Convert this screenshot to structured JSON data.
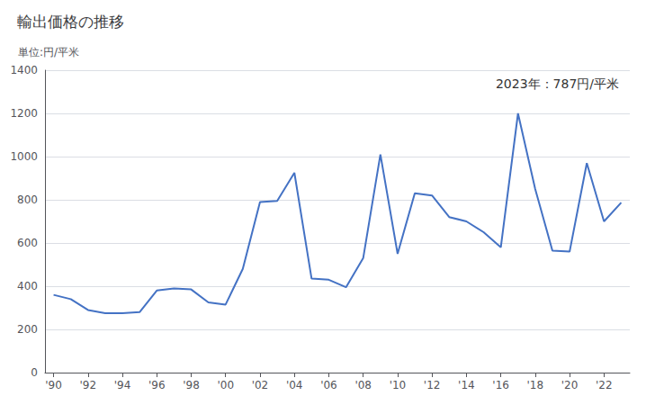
{
  "chart_data": {
    "type": "line",
    "title": "輸出価格の推移",
    "ylabel": "単位:円/平米",
    "annotation": "2023年：787円/平米",
    "x": [
      1990,
      1991,
      1992,
      1993,
      1994,
      1995,
      1996,
      1997,
      1998,
      1999,
      2000,
      2001,
      2002,
      2003,
      2004,
      2005,
      2006,
      2007,
      2008,
      2009,
      2010,
      2011,
      2012,
      2013,
      2014,
      2015,
      2016,
      2017,
      2018,
      2019,
      2020,
      2021,
      2022,
      2023
    ],
    "values": [
      360,
      340,
      290,
      275,
      275,
      280,
      380,
      390,
      385,
      325,
      315,
      480,
      790,
      795,
      925,
      435,
      430,
      395,
      530,
      1010,
      550,
      830,
      820,
      720,
      700,
      650,
      580,
      1200,
      850,
      565,
      560,
      970,
      700,
      787
    ],
    "color": "#4472c4",
    "xlim": [
      1989.5,
      2023.5
    ],
    "xticks": [
      {
        "value": 1990,
        "label": "'90"
      },
      {
        "value": 1992,
        "label": "'92"
      },
      {
        "value": 1994,
        "label": "'94"
      },
      {
        "value": 1996,
        "label": "'96"
      },
      {
        "value": 1998,
        "label": "'98"
      },
      {
        "value": 2000,
        "label": "'00"
      },
      {
        "value": 2002,
        "label": "'02"
      },
      {
        "value": 2004,
        "label": "'04"
      },
      {
        "value": 2006,
        "label": "'06"
      },
      {
        "value": 2008,
        "label": "'08"
      },
      {
        "value": 2010,
        "label": "'10"
      },
      {
        "value": 2012,
        "label": "'12"
      },
      {
        "value": 2014,
        "label": "'14"
      },
      {
        "value": 2016,
        "label": "'16"
      },
      {
        "value": 2018,
        "label": "'18"
      },
      {
        "value": 2020,
        "label": "'20"
      },
      {
        "value": 2022,
        "label": "'22"
      }
    ],
    "ylim": [
      0,
      1400
    ],
    "yticks": [
      0,
      200,
      400,
      600,
      800,
      1000,
      1200,
      1400
    ],
    "grid": true
  }
}
